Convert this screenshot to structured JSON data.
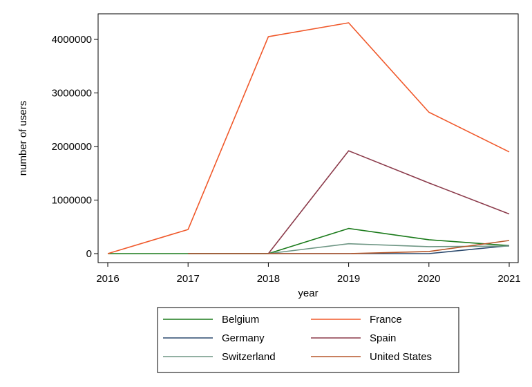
{
  "chart_data": {
    "type": "line",
    "xlabel": "year",
    "ylabel": "number of users",
    "x": [
      2016,
      2017,
      2018,
      2019,
      2020,
      2021
    ],
    "xlim": [
      2016,
      2021
    ],
    "ylim": [
      0,
      4550000
    ],
    "x_ticks": [
      "2016",
      "2017",
      "2018",
      "2019",
      "2020",
      "2021"
    ],
    "y_ticks": [
      {
        "value": 0,
        "label": "0"
      },
      {
        "value": 1000000,
        "label": "1000000"
      },
      {
        "value": 2000000,
        "label": "2000000"
      },
      {
        "value": 3000000,
        "label": "3000000"
      },
      {
        "value": 4000000,
        "label": "4000000"
      }
    ],
    "grid": false,
    "legend_position": "bottom",
    "series": [
      {
        "name": "Belgium",
        "color": "#1a7a1a",
        "values": [
          0,
          0,
          0,
          470000,
          260000,
          150000
        ]
      },
      {
        "name": "France",
        "color": "#f0582a",
        "values": [
          0,
          450000,
          4050000,
          4310000,
          2640000,
          1900000
        ]
      },
      {
        "name": "Germany",
        "color": "#2c4a6e",
        "values": [
          null,
          0,
          0,
          0,
          0,
          150000
        ]
      },
      {
        "name": "Spain",
        "color": "#8b3a4a",
        "values": [
          null,
          null,
          0,
          1920000,
          1320000,
          740000
        ]
      },
      {
        "name": "Switzerland",
        "color": "#6e9684",
        "values": [
          null,
          null,
          0,
          185000,
          130000,
          140000
        ]
      },
      {
        "name": "United States",
        "color": "#b5572a",
        "values": [
          null,
          0,
          0,
          0,
          40000,
          245000
        ]
      }
    ]
  }
}
